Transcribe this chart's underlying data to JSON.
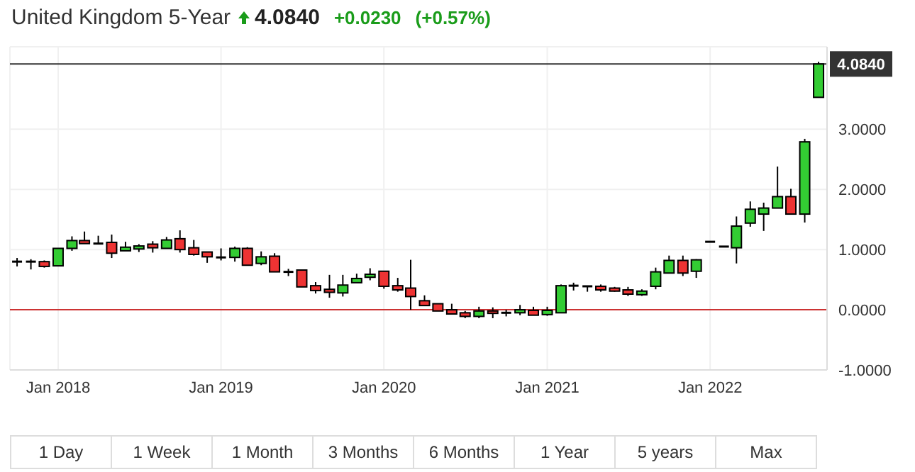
{
  "chart_data": {
    "type": "candlestick",
    "title": "United Kingdom 5-Year",
    "annotations": [
      "4.0840",
      "+0.0230",
      "(+0.57%)",
      "1 Day",
      "1 Week",
      "1 Month",
      "3 Months",
      "6 Months",
      "1 Year",
      "5 years",
      "Max"
    ],
    "x": [
      "2017-10",
      "2017-11",
      "2017-12",
      "2018-01",
      "2018-02",
      "2018-03",
      "2018-04",
      "2018-05",
      "2018-06",
      "2018-07",
      "2018-08",
      "2018-09",
      "2018-10",
      "2018-11",
      "2018-12",
      "2019-01",
      "2019-02",
      "2019-03",
      "2019-04",
      "2019-05",
      "2019-06",
      "2019-07",
      "2019-08",
      "2019-09",
      "2019-10",
      "2019-11",
      "2019-12",
      "2020-01",
      "2020-02",
      "2020-03",
      "2020-04",
      "2020-05",
      "2020-06",
      "2020-07",
      "2020-08",
      "2020-09",
      "2020-10",
      "2020-11",
      "2020-12",
      "2021-01",
      "2021-02",
      "2021-03",
      "2021-04",
      "2021-05",
      "2021-06",
      "2021-07",
      "2021-08",
      "2021-09",
      "2021-10",
      "2021-11",
      "2021-12",
      "2022-01",
      "2022-02",
      "2022-03",
      "2022-04",
      "2022-05",
      "2022-06",
      "2022-07",
      "2022-08",
      "2022-09"
    ],
    "ohlc": [
      [
        0.8,
        0.86,
        0.72,
        0.8
      ],
      [
        0.8,
        0.84,
        0.67,
        0.8
      ],
      [
        0.8,
        0.82,
        0.7,
        0.72
      ],
      [
        0.73,
        1.02,
        0.73,
        1.02
      ],
      [
        1.02,
        1.22,
        0.98,
        1.15
      ],
      [
        1.15,
        1.3,
        1.1,
        1.1
      ],
      [
        1.1,
        1.23,
        1.1,
        1.1
      ],
      [
        1.12,
        1.25,
        0.86,
        0.94
      ],
      [
        0.98,
        1.13,
        0.98,
        1.04
      ],
      [
        1.01,
        1.09,
        0.96,
        1.06
      ],
      [
        1.09,
        1.14,
        0.95,
        1.03
      ],
      [
        1.02,
        1.21,
        1.02,
        1.16
      ],
      [
        1.18,
        1.32,
        0.95,
        1.0
      ],
      [
        1.03,
        1.16,
        0.9,
        0.92
      ],
      [
        0.96,
        0.96,
        0.78,
        0.88
      ],
      [
        0.87,
        1.02,
        0.82,
        0.87
      ],
      [
        0.87,
        1.05,
        0.8,
        1.02
      ],
      [
        1.02,
        1.04,
        0.74,
        0.74
      ],
      [
        0.77,
        0.97,
        0.74,
        0.88
      ],
      [
        0.89,
        0.94,
        0.63,
        0.63
      ],
      [
        0.63,
        0.68,
        0.56,
        0.63
      ],
      [
        0.66,
        0.66,
        0.38,
        0.38
      ],
      [
        0.4,
        0.46,
        0.27,
        0.32
      ],
      [
        0.34,
        0.58,
        0.2,
        0.29
      ],
      [
        0.28,
        0.58,
        0.22,
        0.41
      ],
      [
        0.45,
        0.6,
        0.45,
        0.52
      ],
      [
        0.54,
        0.69,
        0.49,
        0.59
      ],
      [
        0.64,
        0.64,
        0.35,
        0.39
      ],
      [
        0.4,
        0.53,
        0.3,
        0.33
      ],
      [
        0.36,
        0.83,
        0.0,
        0.22
      ],
      [
        0.15,
        0.24,
        0.07,
        0.07
      ],
      [
        0.1,
        0.1,
        -0.02,
        -0.02
      ],
      [
        0.0,
        0.1,
        -0.07,
        -0.07
      ],
      [
        -0.05,
        -0.02,
        -0.14,
        -0.11
      ],
      [
        -0.11,
        0.05,
        -0.14,
        -0.02
      ],
      [
        -0.02,
        0.04,
        -0.14,
        -0.06
      ],
      [
        -0.05,
        0.0,
        -0.11,
        -0.05
      ],
      [
        -0.05,
        0.08,
        -0.09,
        0.0
      ],
      [
        -0.01,
        0.05,
        -0.09,
        -0.09
      ],
      [
        -0.08,
        0.05,
        -0.1,
        -0.01
      ],
      [
        -0.05,
        0.42,
        -0.05,
        0.4
      ],
      [
        0.4,
        0.45,
        0.32,
        0.4
      ],
      [
        0.39,
        0.39,
        0.3,
        0.39
      ],
      [
        0.39,
        0.42,
        0.3,
        0.33
      ],
      [
        0.36,
        0.38,
        0.3,
        0.31
      ],
      [
        0.33,
        0.38,
        0.23,
        0.26
      ],
      [
        0.25,
        0.34,
        0.23,
        0.31
      ],
      [
        0.39,
        0.7,
        0.34,
        0.63
      ],
      [
        0.61,
        0.9,
        0.61,
        0.82
      ],
      [
        0.82,
        0.9,
        0.56,
        0.61
      ],
      [
        0.64,
        0.84,
        0.53,
        0.83
      ],
      [
        1.13,
        1.13,
        1.13,
        1.13
      ],
      [
        1.05,
        1.05,
        1.05,
        1.05
      ],
      [
        1.03,
        1.55,
        0.77,
        1.39
      ],
      [
        1.44,
        1.8,
        1.38,
        1.67
      ],
      [
        1.59,
        1.78,
        1.31,
        1.69
      ],
      [
        1.69,
        2.38,
        1.69,
        1.88
      ],
      [
        1.88,
        2.01,
        1.59,
        1.59
      ],
      [
        1.59,
        2.84,
        1.45,
        2.79
      ],
      [
        3.53,
        4.12,
        3.53,
        4.084
      ]
    ],
    "colors": [
      "#000000",
      "#000000",
      "#ee3333",
      "#33cc33",
      "#33cc33",
      "#ee3333",
      "#000000",
      "#ee3333",
      "#33cc33",
      "#33cc33",
      "#ee3333",
      "#33cc33",
      "#ee3333",
      "#ee3333",
      "#ee3333",
      "#000000",
      "#33cc33",
      "#ee3333",
      "#33cc33",
      "#ee3333",
      "#000000",
      "#ee3333",
      "#ee3333",
      "#ee3333",
      "#33cc33",
      "#33cc33",
      "#33cc33",
      "#ee3333",
      "#ee3333",
      "#ee3333",
      "#ee3333",
      "#ee3333",
      "#ee3333",
      "#ee3333",
      "#33cc33",
      "#ee3333",
      "#000000",
      "#33cc33",
      "#ee3333",
      "#33cc33",
      "#33cc33",
      "#000000",
      "#000000",
      "#ee3333",
      "#ee3333",
      "#ee3333",
      "#33cc33",
      "#33cc33",
      "#33cc33",
      "#ee3333",
      "#33cc33",
      "#000000",
      "#000000",
      "#33cc33",
      "#33cc33",
      "#33cc33",
      "#33cc33",
      "#ee3333",
      "#33cc33",
      "#33cc33"
    ],
    "xlim": [
      "2017-09-15",
      "2022-09-20"
    ],
    "xticks": [
      {
        "value": "2018-01",
        "label": "Jan 2018"
      },
      {
        "value": "2019-01",
        "label": "Jan 2019"
      },
      {
        "value": "2020-01",
        "label": "Jan 2020"
      },
      {
        "value": "2021-01",
        "label": "Jan 2021"
      },
      {
        "value": "2022-01",
        "label": "Jan 2022"
      }
    ],
    "ylim": [
      -1,
      4.37
    ],
    "yticks": [
      {
        "value": -1,
        "label": "-1.0000"
      },
      {
        "value": 0,
        "label": "0.0000"
      },
      {
        "value": 1,
        "label": "1.0000"
      },
      {
        "value": 2,
        "label": "2.0000"
      },
      {
        "value": 3,
        "label": "3.0000"
      }
    ],
    "ref_lines": [
      {
        "axis": "y",
        "value": 0,
        "color": "#cc3333"
      },
      {
        "axis": "y",
        "value": 4.084,
        "label": "4.0840",
        "color": "#333333"
      }
    ],
    "grid": true
  }
}
